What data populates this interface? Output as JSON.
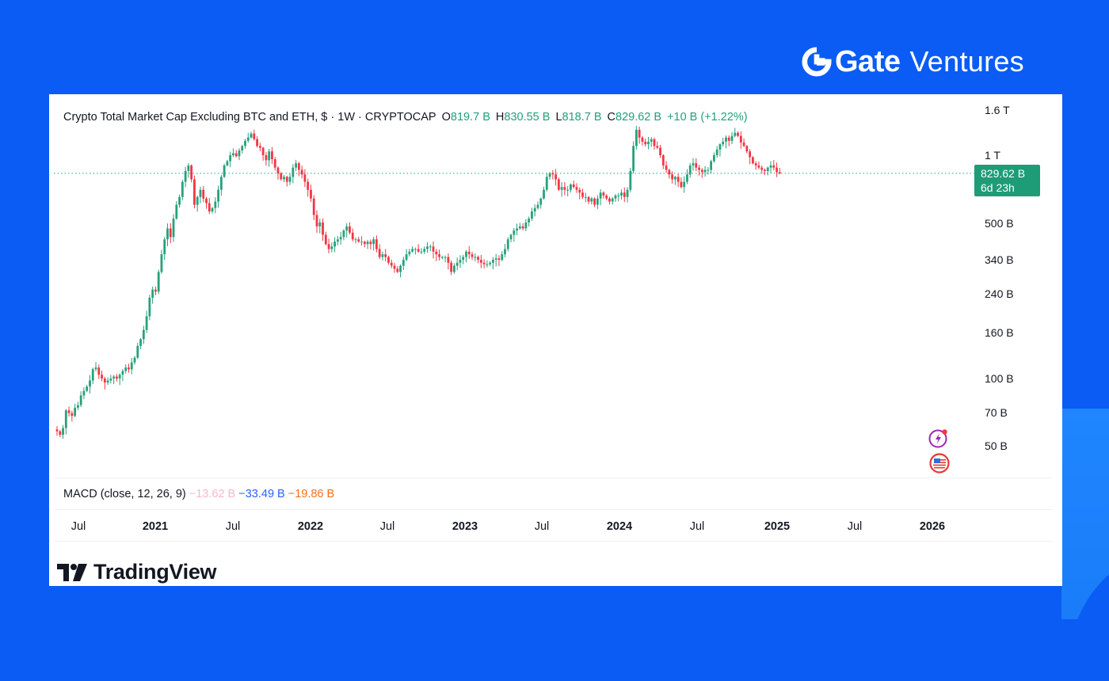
{
  "brand": {
    "name_bold": "Gate",
    "name_light": "Ventures",
    "icon": "gate-logo-icon"
  },
  "chart_header": {
    "title": "Crypto Total Market Cap Excluding BTC and ETH, $ · 1W · CRYPTOCAP",
    "open_label": "O",
    "open": "819.7 B",
    "high_label": "H",
    "high": "830.55 B",
    "low_label": "L",
    "low": "818.7 B",
    "close_label": "C",
    "close": "829.62 B",
    "change": "+10 B (+1.22%)"
  },
  "price_tag": {
    "price": "829.62 B",
    "countdown": "6d 23h",
    "color": "#1e9c77"
  },
  "macd": {
    "label": "MACD (close, 12, 26, 9)",
    "histogram": "−13.62 B",
    "macd": "−33.49 B",
    "signal": "−19.86 B",
    "colors": {
      "histogram": "#f7b8c8",
      "macd": "#2962ff",
      "signal": "#f5701a"
    }
  },
  "branding_footer": {
    "label": "TradingView",
    "icon": "tradingview-logo-icon"
  },
  "side_icons": [
    {
      "name": "lightning-alert-icon",
      "color": "#9c27b0",
      "badge": "#f23645"
    },
    {
      "name": "us-flag-icon",
      "color": "#e53935"
    }
  ],
  "colors": {
    "up": "#26a17b",
    "down": "#f23645",
    "background": "#0a5cf5",
    "price_line": "#26a17b"
  },
  "chart_data": {
    "type": "candlestick",
    "title": "Crypto Total Market Cap Excluding BTC and ETH, $ · 1W · CRYPTOCAP",
    "interval": "1W",
    "scale": "log",
    "ylabel": "",
    "xlabel": "",
    "y_ticks": [
      "1.6 T",
      "1 T",
      "500 B",
      "340 B",
      "240 B",
      "160 B",
      "100 B",
      "70 B",
      "50 B"
    ],
    "y_tick_values_B": [
      1600,
      1000,
      500,
      340,
      240,
      160,
      100,
      70,
      50
    ],
    "x_ticks": [
      "Jul",
      "2021",
      "Jul",
      "2022",
      "Jul",
      "2023",
      "Jul",
      "2024",
      "Jul",
      "2025",
      "Jul",
      "2026"
    ],
    "ylim_B": [
      40,
      1800
    ],
    "grid": false,
    "last": {
      "open": 819.7,
      "high": 830.55,
      "low": 818.7,
      "close": 829.62,
      "change": 10,
      "change_pct": 1.22,
      "unit": "B"
    },
    "indicator": {
      "name": "MACD",
      "params": [
        12,
        26,
        9
      ],
      "histogram": -13.62,
      "macd": -33.49,
      "signal": -19.86,
      "unit": "B"
    },
    "weekly_close_B_approx": {
      "start": "2020-06",
      "values": [
        58,
        56,
        60,
        72,
        70,
        68,
        74,
        76,
        84,
        88,
        92,
        98,
        110,
        112,
        104,
        100,
        96,
        98,
        100,
        102,
        100,
        104,
        108,
        112,
        110,
        118,
        124,
        140,
        150,
        165,
        190,
        230,
        250,
        245,
        300,
        360,
        420,
        470,
        430,
        520,
        600,
        650,
        760,
        850,
        900,
        780,
        600,
        650,
        700,
        640,
        610,
        560,
        580,
        620,
        700,
        800,
        900,
        940,
        1000,
        1020,
        990,
        1050,
        1100,
        1160,
        1200,
        1250,
        1180,
        1100,
        1080,
        1000,
        950,
        1040,
        960,
        880,
        830,
        780,
        800,
        760,
        800,
        880,
        920,
        860,
        820,
        760,
        700,
        640,
        540,
        480,
        500,
        440,
        400,
        380,
        390,
        410,
        420,
        430,
        460,
        480,
        450,
        420,
        420,
        410,
        410,
        400,
        410,
        400,
        420,
        380,
        350,
        360,
        350,
        330,
        320,
        310,
        300,
        320,
        340,
        360,
        370,
        380,
        380,
        370,
        370,
        380,
        390,
        390,
        370,
        360,
        350,
        350,
        350,
        330,
        300,
        320,
        330,
        340,
        350,
        370,
        360,
        350,
        350,
        340,
        330,
        325,
        325,
        330,
        340,
        345,
        340,
        360,
        380,
        420,
        440,
        460,
        470,
        480,
        470,
        500,
        520,
        560,
        580,
        600,
        640,
        700,
        800,
        830,
        820,
        780,
        700,
        720,
        700,
        700,
        740,
        720,
        700,
        680,
        650,
        650,
        620,
        640,
        600,
        640,
        680,
        660,
        640,
        620,
        640,
        660,
        660,
        680,
        650,
        700,
        850,
        1100,
        1300,
        1200,
        1150,
        1120,
        1150,
        1180,
        1100,
        1080,
        1000,
        900,
        860,
        820,
        780,
        800,
        760,
        720,
        760,
        820,
        900,
        920,
        880,
        860,
        840,
        860,
        860,
        940,
        1000,
        1060,
        1120,
        1150,
        1200,
        1160,
        1220,
        1260,
        1220,
        1140,
        1100,
        1040,
        980,
        920,
        900,
        880,
        860,
        850,
        880,
        900,
        880,
        840,
        829.62
      ]
    }
  }
}
